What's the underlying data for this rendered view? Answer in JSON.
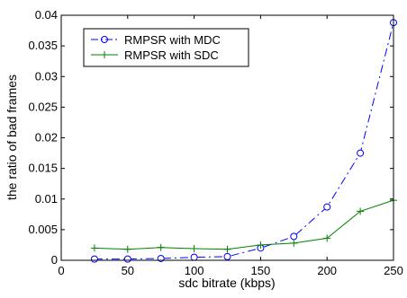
{
  "chart_data": {
    "type": "line",
    "title": "",
    "xlabel": "sdc bitrate (kbps)",
    "ylabel": "the ratio of bad frames",
    "xlim": [
      0,
      250
    ],
    "ylim": [
      0,
      0.04
    ],
    "xticks": [
      0,
      50,
      100,
      150,
      200,
      250
    ],
    "xtick_labels": [
      "0",
      "50",
      "100",
      "150",
      "200",
      "250"
    ],
    "yticks": [
      0,
      0.005,
      0.01,
      0.015,
      0.02,
      0.025,
      0.03,
      0.035,
      0.04
    ],
    "ytick_labels": [
      "0",
      "0.005",
      "0.01",
      "0.015",
      "0.02",
      "0.025",
      "0.03",
      "0.035",
      "0.04"
    ],
    "grid": false,
    "legend_position": "top-left",
    "series": [
      {
        "name": "RMPSR with MDC",
        "color": "#0000ff",
        "line_style": "dash-dot",
        "marker": "circle",
        "x": [
          25,
          50,
          75,
          100,
          125,
          150,
          175,
          200,
          225,
          250
        ],
        "y": [
          0.0002,
          0.0002,
          0.0003,
          0.0005,
          0.0006,
          0.002,
          0.0039,
          0.0087,
          0.0175,
          0.0388
        ]
      },
      {
        "name": "RMPSR with SDC",
        "color": "#008000",
        "line_style": "solid",
        "marker": "plus",
        "x": [
          25,
          50,
          75,
          100,
          125,
          150,
          175,
          200,
          225,
          250
        ],
        "y": [
          0.002,
          0.0018,
          0.0021,
          0.0019,
          0.0018,
          0.0025,
          0.0028,
          0.0036,
          0.008,
          0.0098
        ]
      }
    ]
  }
}
